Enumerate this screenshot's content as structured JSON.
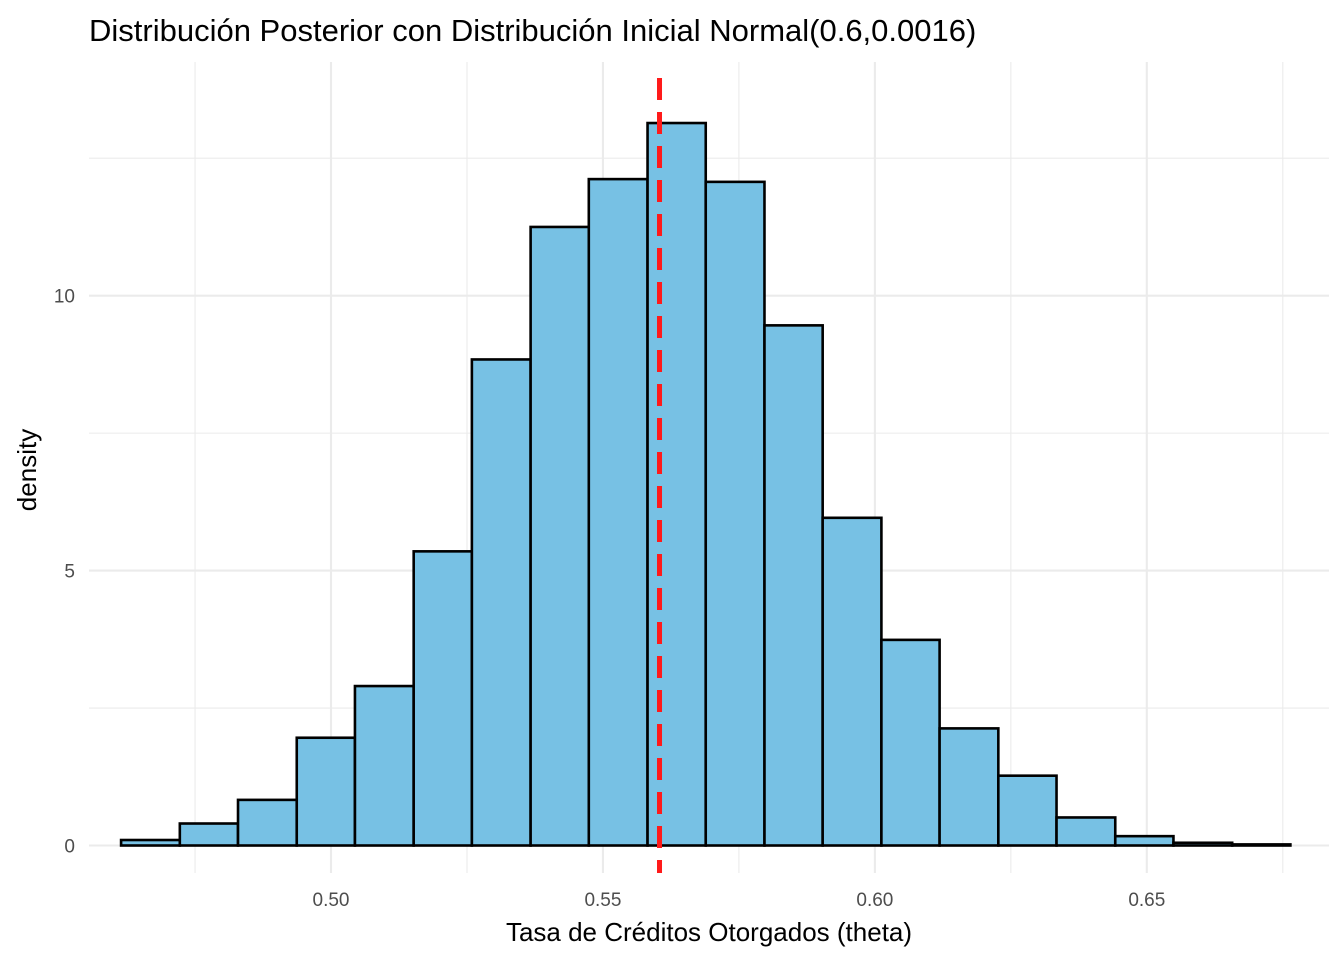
{
  "chart_data": {
    "type": "bar",
    "subtype": "histogram",
    "title": "Distribución Posterior con Distribución Inicial Normal(0.6,0.0016)",
    "xlabel": "Tasa de Créditos Otorgados (theta)",
    "ylabel": "density",
    "xlim": [
      0.4555,
      0.6835
    ],
    "ylim": [
      -0.5,
      14.25
    ],
    "x_ticks": [
      0.5,
      0.55,
      0.6,
      0.65
    ],
    "x_tick_labels": [
      "0.50",
      "0.55",
      "0.60",
      "0.65"
    ],
    "y_ticks": [
      0,
      5,
      10
    ],
    "y_tick_labels": [
      "0",
      "5",
      "10"
    ],
    "grid": true,
    "bin_width": 0.01075,
    "bins": [
      {
        "x0": 0.4614,
        "x1": 0.4722,
        "density": 0.1
      },
      {
        "x0": 0.4722,
        "x1": 0.4829,
        "density": 0.4
      },
      {
        "x0": 0.4829,
        "x1": 0.4937,
        "density": 0.83
      },
      {
        "x0": 0.4937,
        "x1": 0.5044,
        "density": 1.96
      },
      {
        "x0": 0.5044,
        "x1": 0.5152,
        "density": 2.9
      },
      {
        "x0": 0.5152,
        "x1": 0.5259,
        "density": 5.35
      },
      {
        "x0": 0.5259,
        "x1": 0.5367,
        "density": 8.84
      },
      {
        "x0": 0.5367,
        "x1": 0.5474,
        "density": 11.25
      },
      {
        "x0": 0.5474,
        "x1": 0.5582,
        "density": 12.12
      },
      {
        "x0": 0.5582,
        "x1": 0.5689,
        "density": 13.14
      },
      {
        "x0": 0.5689,
        "x1": 0.5797,
        "density": 12.07
      },
      {
        "x0": 0.5797,
        "x1": 0.5904,
        "density": 9.46
      },
      {
        "x0": 0.5904,
        "x1": 0.6012,
        "density": 5.96
      },
      {
        "x0": 0.6012,
        "x1": 0.6119,
        "density": 3.74
      },
      {
        "x0": 0.6119,
        "x1": 0.6227,
        "density": 2.13
      },
      {
        "x0": 0.6227,
        "x1": 0.6334,
        "density": 1.27
      },
      {
        "x0": 0.6334,
        "x1": 0.6442,
        "density": 0.51
      },
      {
        "x0": 0.6442,
        "x1": 0.6549,
        "density": 0.17
      },
      {
        "x0": 0.6549,
        "x1": 0.6657,
        "density": 0.05
      },
      {
        "x0": 0.6657,
        "x1": 0.6764,
        "density": 0.02
      }
    ],
    "bar_fill": "#77c1e4",
    "bar_outline": "#000000",
    "reference_line": {
      "x": 0.5604,
      "style": "dashed",
      "color": "#ff1a1a"
    }
  }
}
